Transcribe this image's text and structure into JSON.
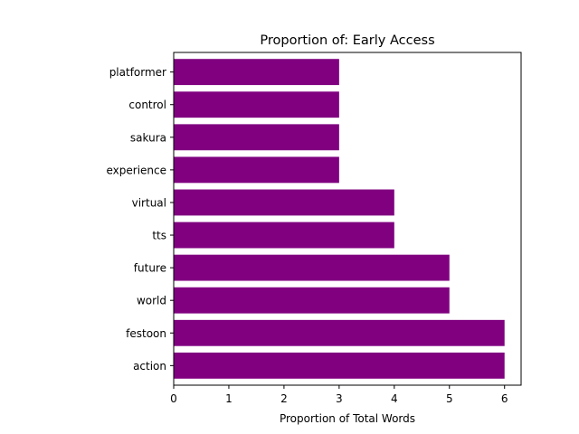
{
  "chart_data": {
    "type": "bar",
    "orientation": "horizontal",
    "title": "Proportion of: Early Access",
    "xlabel": "Proportion of Total Words",
    "ylabel": "",
    "categories": [
      "action",
      "festoon",
      "world",
      "future",
      "tts",
      "virtual",
      "experience",
      "sakura",
      "control",
      "platformer"
    ],
    "values": [
      6,
      6,
      5,
      5,
      4,
      4,
      3,
      3,
      3,
      3
    ],
    "xlim": [
      0,
      6.3
    ],
    "xticks": [
      0,
      1,
      2,
      3,
      4,
      5,
      6
    ],
    "grid": false,
    "legend": "none",
    "bar_color": "#800080"
  }
}
